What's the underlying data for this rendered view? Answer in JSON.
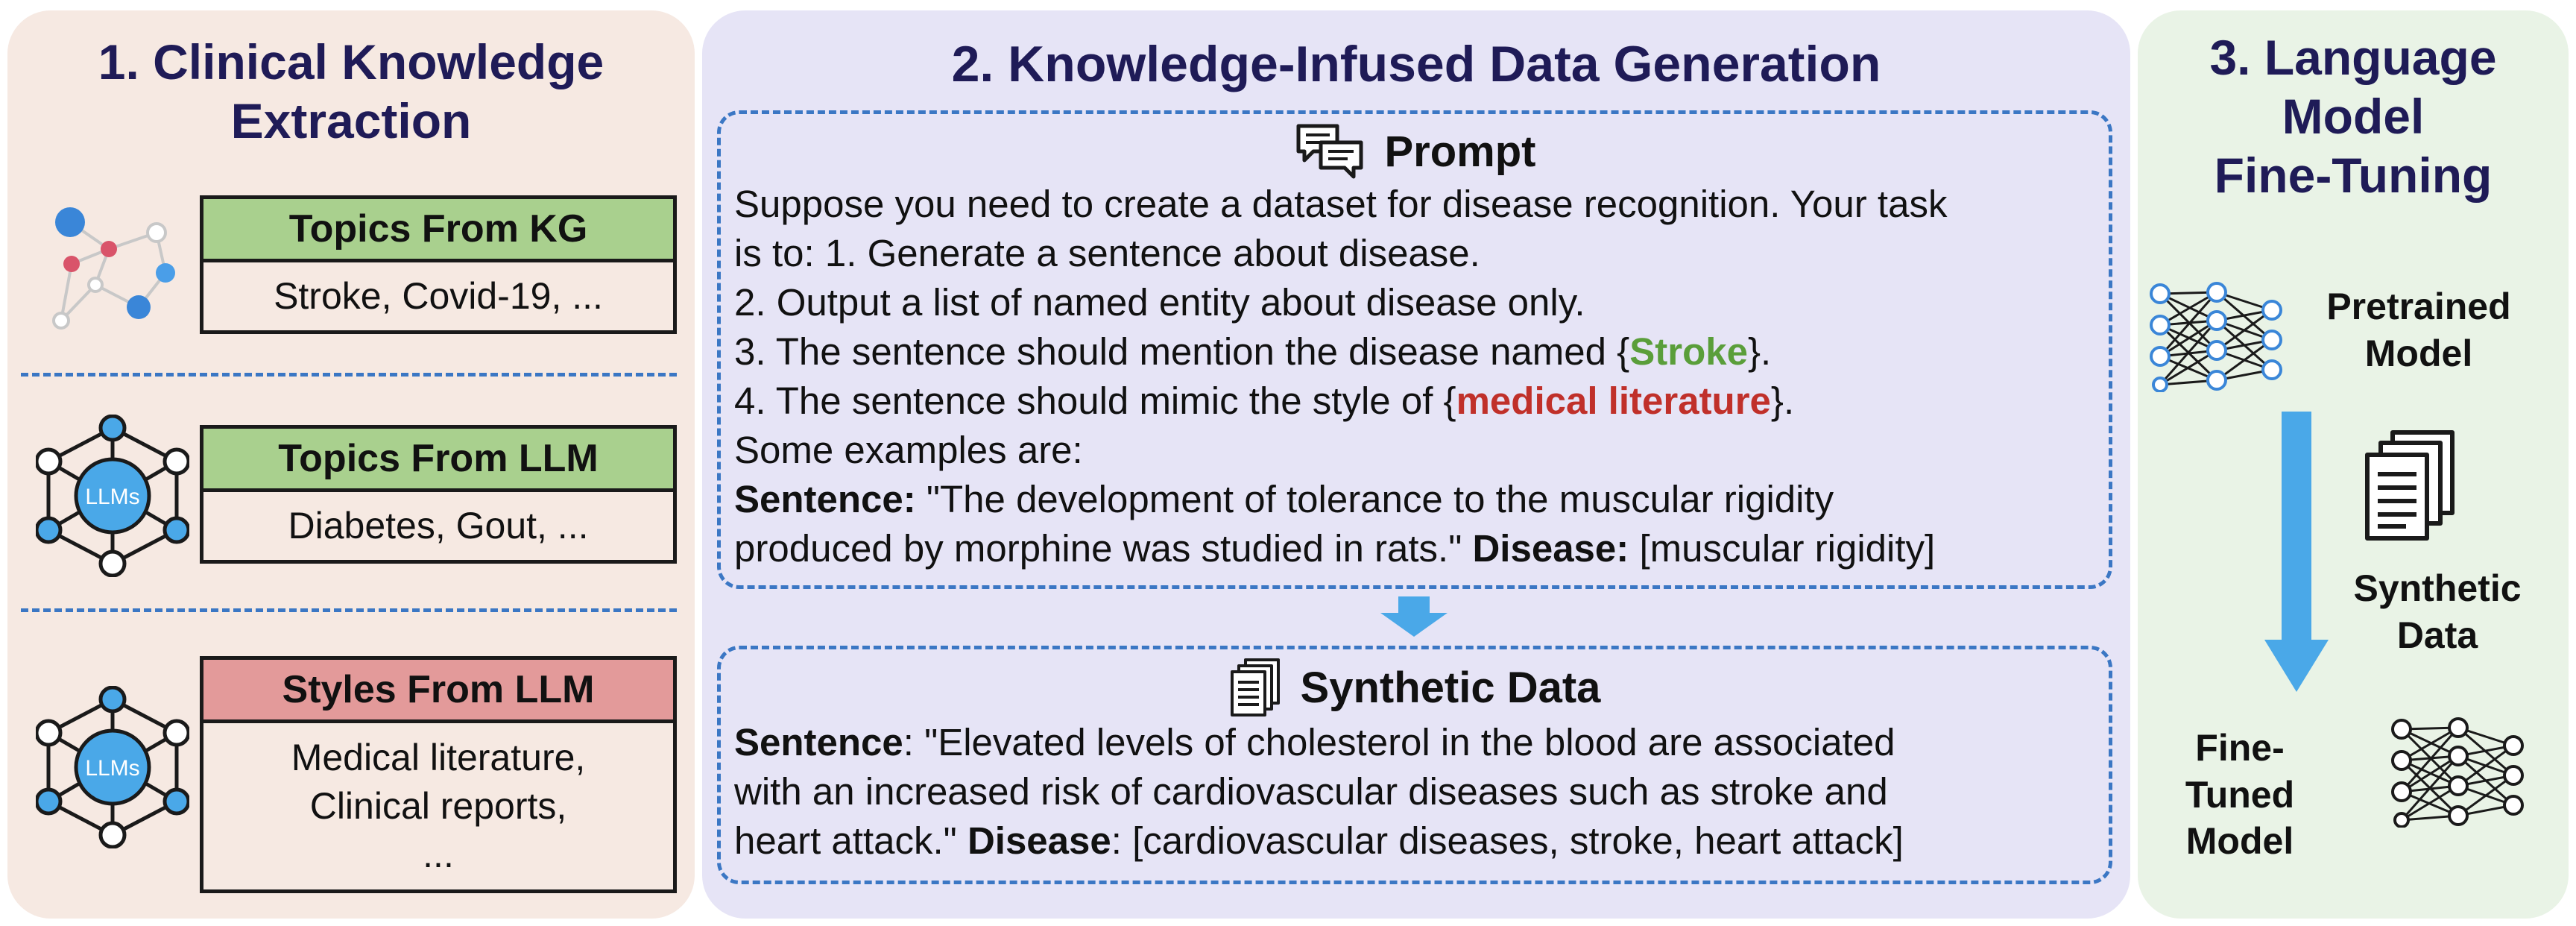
{
  "panel1": {
    "title_lines": [
      "1. Clinical Knowledge",
      "Extraction"
    ],
    "rows": [
      {
        "icon": "knowledge-graph-icon",
        "header": "Topics From KG",
        "lines": [
          "Stroke, Covid-19, ..."
        ]
      },
      {
        "icon": "llm-network-icon",
        "icon_text": "LLMs",
        "header": "Topics From LLM",
        "lines": [
          "Diabetes, Gout, ..."
        ]
      },
      {
        "icon": "llm-network-icon",
        "icon_text": "LLMs",
        "header": "Styles From LLM",
        "lines": [
          "Medical literature,",
          "Clinical reports,",
          "..."
        ]
      }
    ]
  },
  "panel2": {
    "title": "2. Knowledge-Infused Data Generation",
    "prompt": {
      "title": "Prompt",
      "icon": "chat-bubbles-icon",
      "line1": "Suppose you need to create a dataset for disease recognition. Your task",
      "line2": "is to: 1. Generate a sentence about disease.",
      "line3": "2. Output a list of named entity about disease only.",
      "line4_pre": "3. The sentence should mention the disease named {",
      "line4_topic": "Stroke",
      "line4_post": "}.",
      "line5_pre": "4. The sentence should mimic the style of {",
      "line5_style": "medical literature",
      "line5_post": "}.",
      "line6": "Some examples are:",
      "line7_label": "Sentence:",
      "line7_text": " \"The development of tolerance to the muscular rigidity",
      "line8_text": "produced by morphine was studied in rats.\" ",
      "line8_label": "Disease:",
      "line8_value": " [muscular rigidity]"
    },
    "synthetic": {
      "title": "Synthetic Data",
      "icon": "documents-icon",
      "line1_label": "Sentence",
      "line1_text": ": \"Elevated levels of cholesterol in the blood are associated",
      "line2_text": "with an increased risk of cardiovascular diseases such as stroke and",
      "line3_text": "heart attack.\" ",
      "line3_label": "Disease",
      "line3_value": ": [cardiovascular diseases, stroke, heart attack]"
    }
  },
  "panel3": {
    "title_lines": [
      "3. Language",
      "Model",
      "Fine-Tuning"
    ],
    "pretrained_lines": [
      "Pretrained",
      "Model"
    ],
    "synthetic_lines": [
      "Synthetic",
      "Data"
    ],
    "finetuned_lines": [
      "Fine-Tuned",
      "Model"
    ]
  },
  "colors": {
    "title": "#1f1b57",
    "dash_blue": "#3b77c4",
    "arrow_blue": "#4aa8e8",
    "header_green": "#a9d08e",
    "header_red": "#e39a9a",
    "topic_green": "#5a9e3a",
    "style_red": "#c0302a"
  }
}
